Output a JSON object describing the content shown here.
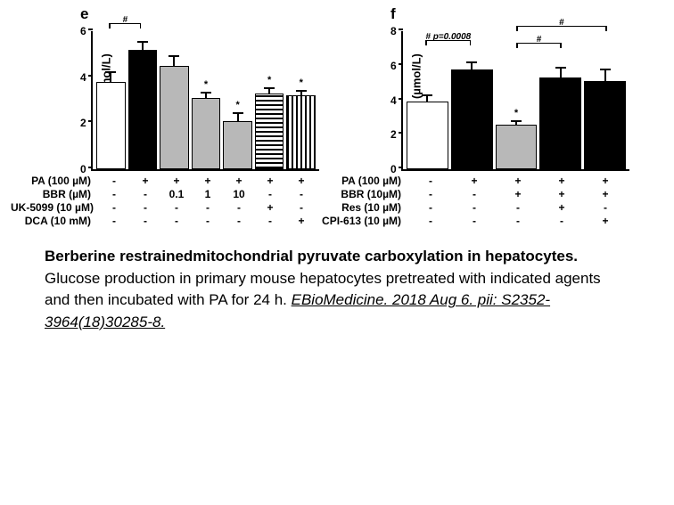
{
  "panel_e": {
    "label": "e",
    "y_axis": {
      "label": "Glucose (µmol/L)",
      "max": 6,
      "ticks": [
        0,
        2,
        4,
        6
      ]
    },
    "bars": [
      {
        "value": 3.8,
        "err": 0.5,
        "fill": "white",
        "sig": ""
      },
      {
        "value": 5.2,
        "err": 0.4,
        "fill": "black",
        "sig": ""
      },
      {
        "value": 4.5,
        "err": 0.5,
        "fill": "gray",
        "sig": ""
      },
      {
        "value": 3.1,
        "err": 0.3,
        "fill": "gray",
        "sig": "*"
      },
      {
        "value": 2.1,
        "err": 0.4,
        "fill": "gray",
        "sig": "*"
      },
      {
        "value": 3.3,
        "err": 0.3,
        "fill": "hstripe",
        "sig": "*"
      },
      {
        "value": 3.2,
        "err": 0.3,
        "fill": "vstripe",
        "sig": "*"
      }
    ],
    "brackets": [
      {
        "from": 0,
        "to": 1,
        "y": 6.1,
        "label": "#"
      }
    ],
    "treatments": [
      {
        "label": "PA (100 µM)",
        "cells": [
          "-",
          "+",
          "+",
          "+",
          "+",
          "+",
          "+"
        ]
      },
      {
        "label": "BBR (µM)",
        "cells": [
          "-",
          "-",
          "0.1",
          "1",
          "10",
          "-",
          "-"
        ]
      },
      {
        "label": "UK-5099 (10 µM)",
        "cells": [
          "-",
          "-",
          "-",
          "-",
          "-",
          "+",
          "-"
        ]
      },
      {
        "label": "DCA (10 mM)",
        "cells": [
          "-",
          "-",
          "-",
          "-",
          "-",
          "-",
          "+"
        ]
      }
    ]
  },
  "panel_f": {
    "label": "f",
    "y_axis": {
      "label": "Glucose (µmol/L)",
      "max": 8,
      "ticks": [
        0,
        2,
        4,
        6,
        8
      ]
    },
    "bars": [
      {
        "value": 3.9,
        "err": 0.5,
        "fill": "white",
        "sig": ""
      },
      {
        "value": 5.8,
        "err": 0.5,
        "fill": "black",
        "sig": ""
      },
      {
        "value": 2.6,
        "err": 0.3,
        "fill": "gray",
        "sig": "*"
      },
      {
        "value": 5.3,
        "err": 0.7,
        "fill": "black",
        "sig": ""
      },
      {
        "value": 5.1,
        "err": 0.8,
        "fill": "black",
        "sig": ""
      }
    ],
    "brackets": [
      {
        "from": 0,
        "to": 1,
        "y": 7.2,
        "label": "# p=0.0008"
      },
      {
        "from": 2,
        "to": 3,
        "y": 7.0,
        "label": "#"
      },
      {
        "from": 2,
        "to": 4,
        "y": 8.0,
        "label": "#"
      }
    ],
    "treatments": [
      {
        "label": "PA (100 µM)",
        "cells": [
          "-",
          "+",
          "+",
          "+",
          "+"
        ]
      },
      {
        "label": "BBR (10µM)",
        "cells": [
          "-",
          "-",
          "+",
          "+",
          "+"
        ]
      },
      {
        "label": "Res (10 µM)",
        "cells": [
          "-",
          "-",
          "-",
          "+",
          "-"
        ]
      },
      {
        "label": "CPI-613 (10 µM)",
        "cells": [
          "-",
          "-",
          "-",
          "-",
          "+"
        ]
      }
    ]
  },
  "caption": {
    "title": "Berberine restrainedmitochondrial pyruvate carboxylation in hepatocytes.",
    "body": "Glucose production in primary mouse hepatocytes pretreated with indicated agents and then incubated with PA for 24 h. ",
    "cite": "EBioMedicine. 2018 Aug 6. pii: S2352-3964(18)30285-8."
  },
  "colors": {
    "white": "#ffffff",
    "black": "#000000",
    "gray": "#b8b8b8"
  }
}
